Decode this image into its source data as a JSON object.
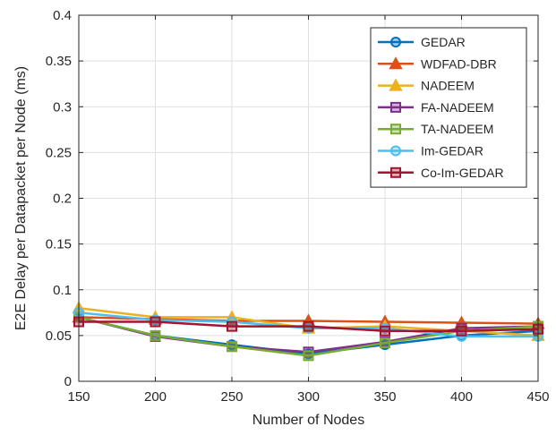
{
  "chart_data": {
    "type": "line",
    "title": "",
    "xlabel": "Number of Nodes",
    "ylabel": "E2E Delay per Datapacket per Node (ms)",
    "xlim": [
      150,
      450
    ],
    "ylim": [
      0,
      0.4
    ],
    "x": [
      150,
      200,
      250,
      300,
      350,
      400,
      450
    ],
    "xticks": [
      "150",
      "200",
      "250",
      "300",
      "350",
      "400",
      "450"
    ],
    "yticks": [
      "0",
      "0.05",
      "0.1",
      "0.15",
      "0.2",
      "0.25",
      "0.3",
      "0.35",
      "0.4"
    ],
    "grid": true,
    "legend_position": "top-right",
    "series": [
      {
        "name": "GEDAR",
        "color": "#0072BD",
        "marker": "circle",
        "values": [
          0.07,
          0.05,
          0.04,
          0.03,
          0.04,
          0.05,
          0.055
        ]
      },
      {
        "name": "WDFAD-DBR",
        "color": "#D95319",
        "marker": "triangle",
        "values": [
          0.07,
          0.068,
          0.066,
          0.066,
          0.065,
          0.064,
          0.063
        ]
      },
      {
        "name": "NADEEM",
        "color": "#EDB120",
        "marker": "triangle",
        "values": [
          0.08,
          0.07,
          0.07,
          0.058,
          0.06,
          0.055,
          0.05
        ]
      },
      {
        "name": "FA-NADEEM",
        "color": "#7E2F8E",
        "marker": "square",
        "values": [
          0.07,
          0.049,
          0.038,
          0.032,
          0.043,
          0.058,
          0.06
        ]
      },
      {
        "name": "TA-NADEEM",
        "color": "#77AC30",
        "marker": "square",
        "values": [
          0.07,
          0.05,
          0.038,
          0.028,
          0.042,
          0.055,
          0.06
        ]
      },
      {
        "name": "Im-GEDAR",
        "color": "#4DBEEE",
        "marker": "circle",
        "values": [
          0.075,
          0.067,
          0.065,
          0.058,
          0.058,
          0.049,
          0.049
        ]
      },
      {
        "name": "Co-Im-GEDAR",
        "color": "#A2142F",
        "marker": "square",
        "values": [
          0.065,
          0.065,
          0.06,
          0.06,
          0.055,
          0.055,
          0.057
        ]
      }
    ]
  }
}
